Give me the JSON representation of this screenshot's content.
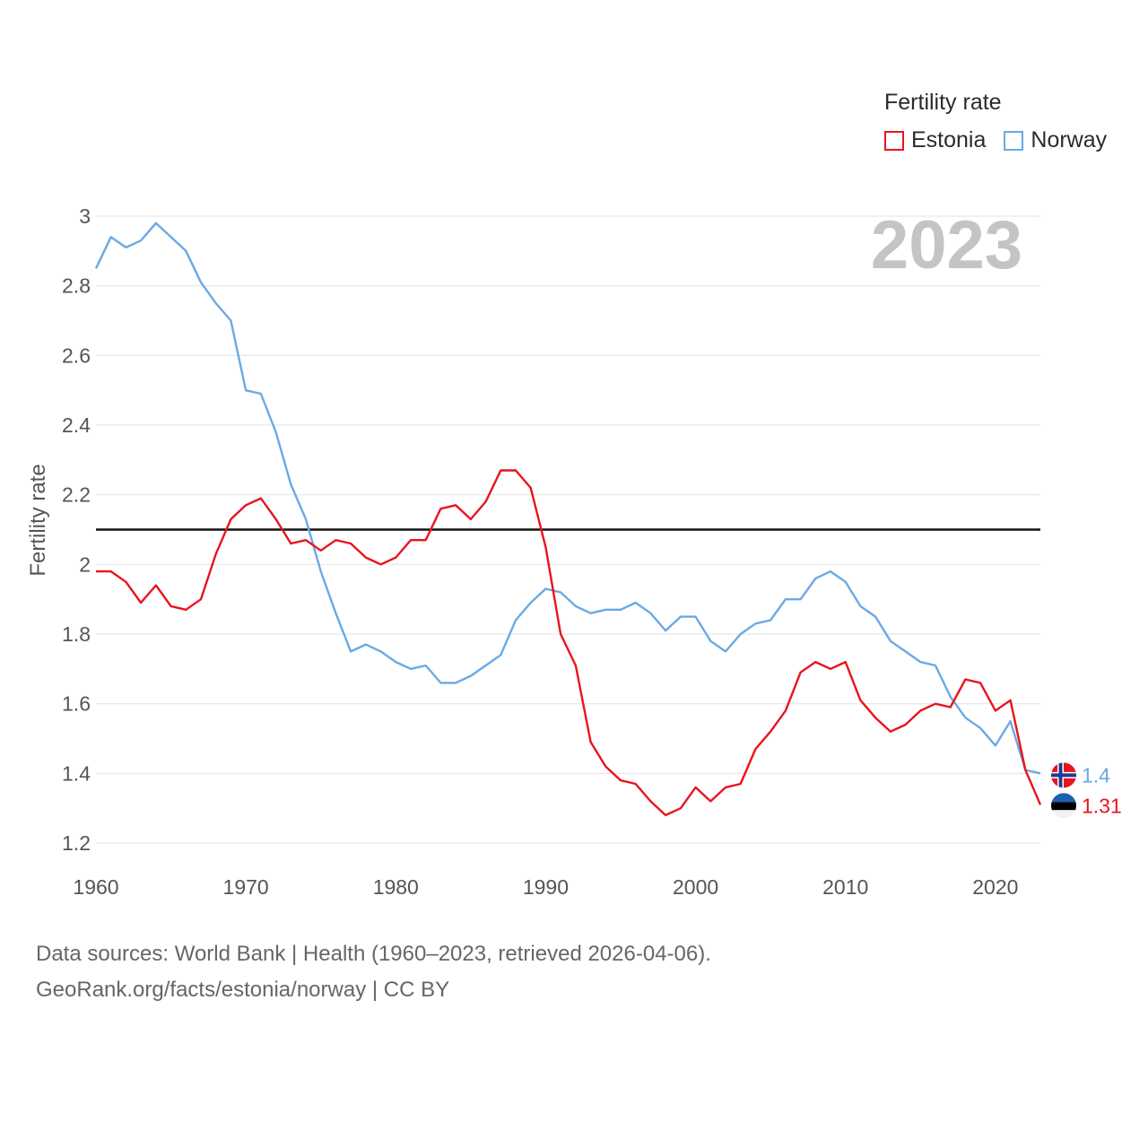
{
  "legend": {
    "title": "Fertility rate",
    "items": [
      {
        "name": "Estonia",
        "color": "#e8141c"
      },
      {
        "name": "Norway",
        "color": "#6aa9e4"
      }
    ]
  },
  "source": {
    "line1": "Data sources: World Bank | Health (1960–2023, retrieved 2026-04-06).",
    "line2": "GeoRank.org/facts/estonia/norway | CC BY"
  },
  "chart_data": {
    "type": "line",
    "year_label": "2023",
    "ylabel": "Fertility rate",
    "xlabel": "",
    "xlim": [
      1960,
      2023
    ],
    "ylim": [
      1.2,
      3.0
    ],
    "x_ticks": [
      1960,
      1970,
      1980,
      1990,
      2000,
      2010,
      2020
    ],
    "y_ticks": [
      1.2,
      1.4,
      1.6,
      1.8,
      2,
      2.2,
      2.4,
      2.6,
      2.8,
      3
    ],
    "reference_line": 2.1,
    "x": [
      1960,
      1961,
      1962,
      1963,
      1964,
      1965,
      1966,
      1967,
      1968,
      1969,
      1970,
      1971,
      1972,
      1973,
      1974,
      1975,
      1976,
      1977,
      1978,
      1979,
      1980,
      1981,
      1982,
      1983,
      1984,
      1985,
      1986,
      1987,
      1988,
      1989,
      1990,
      1991,
      1992,
      1993,
      1994,
      1995,
      1996,
      1997,
      1998,
      1999,
      2000,
      2001,
      2002,
      2003,
      2004,
      2005,
      2006,
      2007,
      2008,
      2009,
      2010,
      2011,
      2012,
      2013,
      2014,
      2015,
      2016,
      2017,
      2018,
      2019,
      2020,
      2021,
      2022,
      2023
    ],
    "series": [
      {
        "name": "Estonia",
        "color": "#e8141c",
        "end_label": "1.31",
        "values": [
          1.98,
          1.98,
          1.95,
          1.89,
          1.94,
          1.88,
          1.87,
          1.9,
          2.03,
          2.13,
          2.17,
          2.19,
          2.13,
          2.06,
          2.07,
          2.04,
          2.07,
          2.06,
          2.02,
          2.0,
          2.02,
          2.07,
          2.07,
          2.16,
          2.17,
          2.13,
          2.18,
          2.27,
          2.27,
          2.22,
          2.05,
          1.8,
          1.71,
          1.49,
          1.42,
          1.38,
          1.37,
          1.32,
          1.28,
          1.3,
          1.36,
          1.32,
          1.36,
          1.37,
          1.47,
          1.52,
          1.58,
          1.69,
          1.72,
          1.7,
          1.72,
          1.61,
          1.56,
          1.52,
          1.54,
          1.58,
          1.6,
          1.59,
          1.67,
          1.66,
          1.58,
          1.61,
          1.41,
          1.31
        ]
      },
      {
        "name": "Norway",
        "color": "#6aa9e4",
        "end_label": "1.4",
        "values": [
          2.85,
          2.94,
          2.91,
          2.93,
          2.98,
          2.94,
          2.9,
          2.81,
          2.75,
          2.7,
          2.5,
          2.49,
          2.38,
          2.23,
          2.13,
          1.98,
          1.86,
          1.75,
          1.77,
          1.75,
          1.72,
          1.7,
          1.71,
          1.66,
          1.66,
          1.68,
          1.71,
          1.74,
          1.84,
          1.89,
          1.93,
          1.92,
          1.88,
          1.86,
          1.87,
          1.87,
          1.89,
          1.86,
          1.81,
          1.85,
          1.85,
          1.78,
          1.75,
          1.8,
          1.83,
          1.84,
          1.9,
          1.9,
          1.96,
          1.98,
          1.95,
          1.88,
          1.85,
          1.78,
          1.75,
          1.72,
          1.71,
          1.62,
          1.56,
          1.53,
          1.48,
          1.55,
          1.41,
          1.4
        ]
      }
    ]
  }
}
